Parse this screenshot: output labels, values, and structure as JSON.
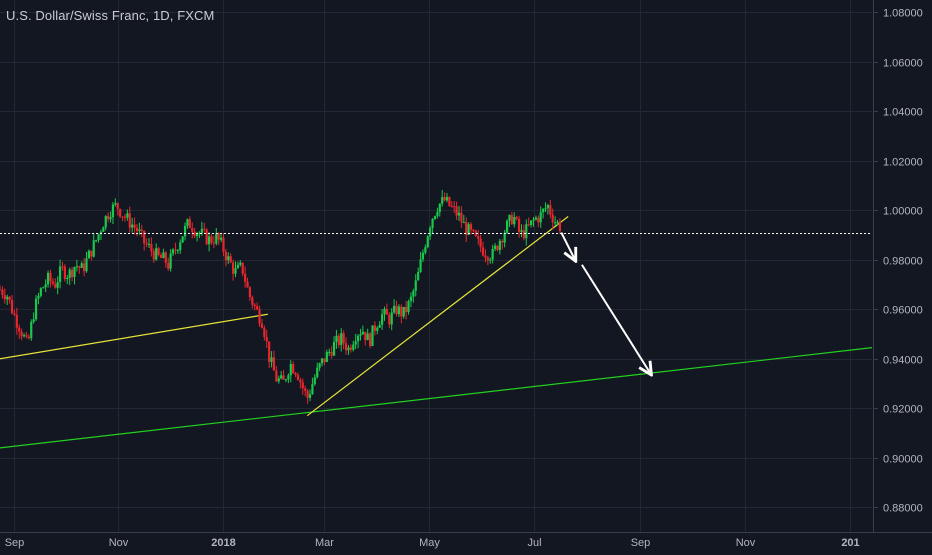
{
  "chart_data": {
    "type": "candlestick",
    "title": "U.S. Dollar/Swiss Franc, 1D, FXCM",
    "ylim": [
      0.87,
      1.085
    ],
    "y_ticks": [
      "1.08000",
      "1.06000",
      "1.04000",
      "1.02000",
      "1.00000",
      "0.98000",
      "0.96000",
      "0.94000",
      "0.92000",
      "0.90000",
      "0.88000"
    ],
    "x_ticks": [
      "Sep",
      "Nov",
      "2018",
      "Mar",
      "May",
      "Jul",
      "Sep",
      "Nov",
      "201"
    ],
    "x_tick_days": [
      0,
      61,
      122,
      181,
      242,
      303,
      365,
      426,
      487
    ],
    "x_range_days": [
      -8,
      500
    ],
    "current_price": 0.991,
    "colors": {
      "up": "#19c94c",
      "down": "#e8262b",
      "support_line": "#22d11f",
      "trend_line": "#e6e43a",
      "arrow": "#ffffff",
      "price_line": "#ffffff",
      "grid": "#232733",
      "axis_text": "#b2b5be",
      "background": "#131722"
    },
    "price_path": [
      [
        -8,
        0.968
      ],
      [
        -4,
        0.966
      ],
      [
        0,
        0.958
      ],
      [
        4,
        0.952
      ],
      [
        8,
        0.945
      ],
      [
        12,
        0.96
      ],
      [
        16,
        0.968
      ],
      [
        20,
        0.972
      ],
      [
        24,
        0.97
      ],
      [
        28,
        0.976
      ],
      [
        32,
        0.974
      ],
      [
        36,
        0.978
      ],
      [
        40,
        0.976
      ],
      [
        44,
        0.982
      ],
      [
        48,
        0.988
      ],
      [
        52,
        0.995
      ],
      [
        56,
        1.0
      ],
      [
        60,
        1.002
      ],
      [
        64,
        0.998
      ],
      [
        68,
        0.995
      ],
      [
        72,
        0.992
      ],
      [
        76,
        0.987
      ],
      [
        80,
        0.984
      ],
      [
        84,
        0.981
      ],
      [
        88,
        0.98
      ],
      [
        90,
        0.978
      ],
      [
        94,
        0.984
      ],
      [
        98,
        0.99
      ],
      [
        102,
        0.995
      ],
      [
        106,
        0.992
      ],
      [
        110,
        0.99
      ],
      [
        114,
        0.988
      ],
      [
        118,
        0.989
      ],
      [
        121,
        0.986
      ],
      [
        125,
        0.98
      ],
      [
        129,
        0.975
      ],
      [
        133,
        0.977
      ],
      [
        137,
        0.966
      ],
      [
        141,
        0.96
      ],
      [
        145,
        0.955
      ],
      [
        149,
        0.94
      ],
      [
        153,
        0.932
      ],
      [
        157,
        0.93
      ],
      [
        161,
        0.938
      ],
      [
        165,
        0.935
      ],
      [
        168,
        0.929
      ],
      [
        171,
        0.924
      ],
      [
        175,
        0.932
      ],
      [
        179,
        0.938
      ],
      [
        183,
        0.942
      ],
      [
        187,
        0.946
      ],
      [
        191,
        0.948
      ],
      [
        195,
        0.944
      ],
      [
        199,
        0.95
      ],
      [
        203,
        0.952
      ],
      [
        207,
        0.947
      ],
      [
        211,
        0.954
      ],
      [
        215,
        0.958
      ],
      [
        219,
        0.956
      ],
      [
        223,
        0.96
      ],
      [
        227,
        0.958
      ],
      [
        231,
        0.963
      ],
      [
        235,
        0.972
      ],
      [
        239,
        0.985
      ],
      [
        243,
        0.996
      ],
      [
        247,
        1.002
      ],
      [
        251,
        1.004
      ],
      [
        255,
        1.001
      ],
      [
        259,
        0.998
      ],
      [
        263,
        0.993
      ],
      [
        267,
        0.99
      ],
      [
        271,
        0.986
      ],
      [
        275,
        0.983
      ],
      [
        279,
        0.982
      ],
      [
        283,
        0.988
      ],
      [
        287,
        0.993
      ],
      [
        291,
        0.998
      ],
      [
        295,
        0.99
      ],
      [
        299,
        0.992
      ],
      [
        303,
        0.996
      ],
      [
        307,
        0.998
      ],
      [
        311,
        1.002
      ],
      [
        315,
        0.996
      ],
      [
        319,
        0.993
      ]
    ],
    "support_line": {
      "from": [
        -8,
        0.904
      ],
      "to": [
        500,
        0.9445
      ]
    },
    "trend_lines": [
      {
        "from": [
          -8,
          0.94
        ],
        "to": [
          148,
          0.958
        ]
      },
      {
        "from": [
          171,
          0.917
        ],
        "to": [
          323,
          0.9975
        ]
      }
    ],
    "arrows": [
      {
        "from": [
          319,
          0.991
        ],
        "to": [
          327,
          0.98
        ]
      },
      {
        "from": [
          331,
          0.978
        ],
        "to": [
          371,
          0.934
        ]
      }
    ]
  }
}
